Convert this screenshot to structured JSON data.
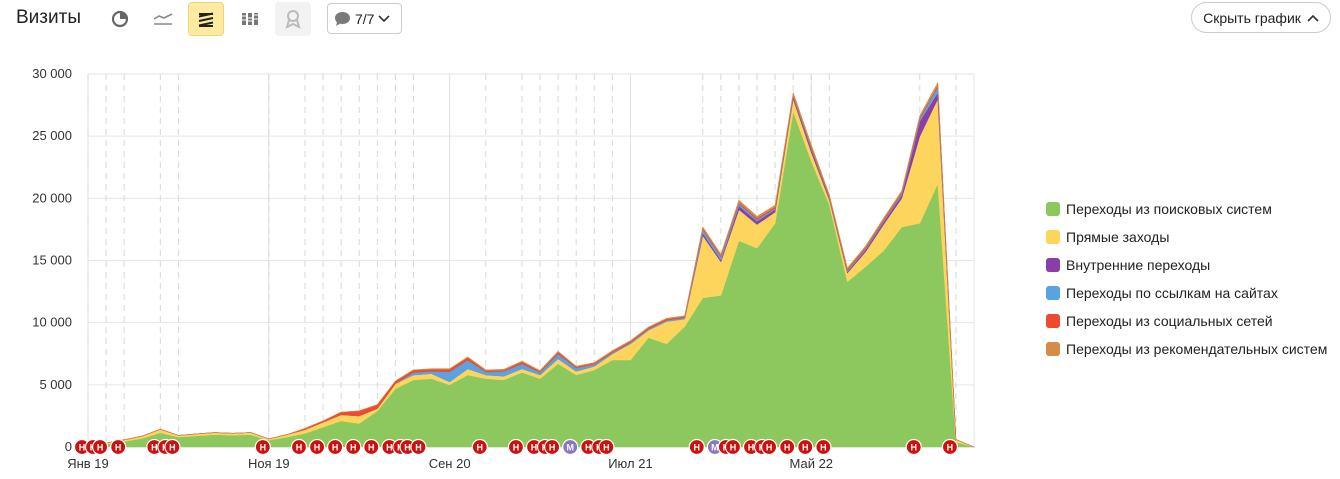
{
  "header": {
    "title": "Визиты",
    "comments_count": "7/7",
    "hide_chart_label": "Скрыть график"
  },
  "toolbar_icons": [
    "pie-chart-icon",
    "line-chart-icon",
    "stacked-area-icon",
    "bar-chart-icon",
    "map-icon",
    "comment-icon"
  ],
  "colors": {
    "search": "#8dc85f",
    "direct": "#fdd55c",
    "internal": "#8b3fa6",
    "links": "#5aa3e3",
    "social": "#ef4a2f",
    "recommend": "#d78c45",
    "marker_n": "#cc1111",
    "marker_m": "#8a75c9"
  },
  "chart_data": {
    "type": "area",
    "stacked": true,
    "x_tick_labels": [
      "Янв 19",
      "Ноя 19",
      "Сен 20",
      "Июл 21",
      "Май 22"
    ],
    "ylim": [
      0,
      30000
    ],
    "y_ticks": [
      "0",
      "5 000",
      "10 000",
      "15 000",
      "20 000",
      "25 000",
      "30 000"
    ],
    "grid": true,
    "legend_position": "right",
    "x": [
      "Янв 19",
      "Фев 19",
      "Мар 19",
      "Апр 19",
      "Май 19",
      "Июн 19",
      "Июл 19",
      "Авг 19",
      "Сен 19",
      "Окт 19",
      "Ноя 19",
      "Дек 19",
      "Янв 20",
      "Фев 20",
      "Мар 20",
      "Апр 20",
      "Май 20",
      "Июн 20",
      "Июл 20",
      "Авг 20",
      "Сен 20",
      "Окт 20",
      "Ноя 20",
      "Дек 20",
      "Янв 21",
      "Фев 21",
      "Мар 21",
      "Апр 21",
      "Май 21",
      "Июн 21",
      "Июл 21",
      "Авг 21",
      "Сен 21",
      "Окт 21",
      "Ноя 21",
      "Дек 21",
      "Янв 22",
      "Фев 22",
      "Мар 22",
      "Апр 22",
      "Май 22",
      "Июн 22",
      "Июл 22",
      "Авг 22",
      "Сен 22",
      "Окт 22",
      "Ноя 22",
      "Дек 22",
      "Янв 23",
      "Фев 23"
    ],
    "series": [
      {
        "name": "Переходы из поисковых систем",
        "color": "#8dc85f",
        "values": [
          80,
          250,
          450,
          700,
          1150,
          800,
          900,
          1000,
          950,
          1000,
          550,
          800,
          1100,
          1600,
          2100,
          1900,
          2900,
          4700,
          5400,
          5500,
          5000,
          5800,
          5500,
          5400,
          6000,
          5500,
          6700,
          5800,
          6200,
          7000,
          7000,
          8800,
          8300,
          9700,
          12000,
          12200,
          16600,
          16000,
          18000,
          27000,
          23000,
          19500,
          13300,
          14500,
          15800,
          17700,
          18000,
          21200,
          400,
          0
        ]
      },
      {
        "name": "Прямые заходы",
        "color": "#fdd55c",
        "values": [
          20,
          70,
          130,
          180,
          280,
          130,
          150,
          160,
          150,
          170,
          100,
          200,
          300,
          400,
          500,
          600,
          200,
          400,
          400,
          400,
          250,
          500,
          300,
          300,
          300,
          300,
          400,
          300,
          300,
          500,
          1300,
          600,
          1800,
          600,
          5000,
          2700,
          2500,
          1900,
          900,
          1000,
          700,
          400,
          700,
          1200,
          2100,
          2300,
          7000,
          6800,
          200,
          0
        ]
      },
      {
        "name": "Внутренние переходы",
        "color": "#8b3fa6",
        "values": [
          0,
          0,
          0,
          0,
          0,
          0,
          0,
          0,
          0,
          0,
          0,
          0,
          0,
          0,
          0,
          0,
          0,
          0,
          0,
          0,
          0,
          0,
          0,
          0,
          0,
          0,
          0,
          0,
          0,
          0,
          0,
          0,
          0,
          0,
          200,
          150,
          300,
          250,
          200,
          150,
          250,
          100,
          100,
          150,
          200,
          250,
          1200,
          500,
          0,
          0
        ]
      },
      {
        "name": "Переходы по ссылкам на сайтах",
        "color": "#5aa3e3",
        "values": [
          0,
          0,
          0,
          0,
          0,
          0,
          0,
          0,
          0,
          0,
          0,
          0,
          0,
          0,
          0,
          0,
          0,
          0,
          200,
          200,
          800,
          700,
          250,
          400,
          400,
          200,
          400,
          250,
          150,
          100,
          100,
          100,
          100,
          100,
          300,
          250,
          200,
          150,
          100,
          100,
          100,
          100,
          100,
          100,
          100,
          150,
          200,
          500,
          0,
          0
        ]
      },
      {
        "name": "Переходы из социальных сетей",
        "color": "#ef4a2f",
        "values": [
          0,
          0,
          0,
          0,
          0,
          0,
          0,
          0,
          0,
          0,
          0,
          0,
          100,
          100,
          200,
          400,
          300,
          200,
          200,
          150,
          200,
          200,
          100,
          100,
          150,
          100,
          150,
          100,
          100,
          100,
          100,
          100,
          100,
          100,
          100,
          100,
          100,
          100,
          100,
          100,
          100,
          100,
          100,
          100,
          100,
          100,
          100,
          100,
          0,
          0
        ]
      },
      {
        "name": "Переходы из рекомендательных систем",
        "color": "#d78c45",
        "values": [
          0,
          0,
          0,
          0,
          0,
          0,
          0,
          0,
          0,
          0,
          0,
          0,
          0,
          0,
          0,
          0,
          0,
          0,
          0,
          50,
          50,
          50,
          50,
          50,
          50,
          50,
          50,
          50,
          50,
          50,
          50,
          50,
          50,
          50,
          100,
          100,
          150,
          150,
          150,
          150,
          150,
          100,
          100,
          100,
          100,
          100,
          150,
          200,
          0,
          0
        ]
      }
    ],
    "markers": [
      {
        "x": "Янв 19",
        "label": "Н"
      },
      {
        "x": "Янв 19",
        "label": "Н"
      },
      {
        "x": "Фев 19",
        "label": "Н"
      },
      {
        "x": "Мар 19",
        "label": "Н"
      },
      {
        "x": "Май 19",
        "label": "Н"
      },
      {
        "x": "Май 19",
        "label": "Н"
      },
      {
        "x": "Июн 19",
        "label": "Н"
      },
      {
        "x": "Ноя 19",
        "label": "Н"
      },
      {
        "x": "Янв 20",
        "label": "Н"
      },
      {
        "x": "Фев 20",
        "label": "Н"
      },
      {
        "x": "Мар 20",
        "label": "Н"
      },
      {
        "x": "Апр 20",
        "label": "Н"
      },
      {
        "x": "Май 20",
        "label": "Н"
      },
      {
        "x": "Июн 20",
        "label": "Н"
      },
      {
        "x": "Июн 20",
        "label": "Н"
      },
      {
        "x": "Июл 20",
        "label": "Н"
      },
      {
        "x": "Июл 20",
        "label": "Н"
      },
      {
        "x": "Ноя 20",
        "label": "Н"
      },
      {
        "x": "Янв 21",
        "label": "Н"
      },
      {
        "x": "Фев 21",
        "label": "Н"
      },
      {
        "x": "Фев 21",
        "label": "Н"
      },
      {
        "x": "Мар 21",
        "label": "Н"
      },
      {
        "x": "Апр 21",
        "label": "М"
      },
      {
        "x": "Май 21",
        "label": "Н"
      },
      {
        "x": "Май 21",
        "label": "Н"
      },
      {
        "x": "Июн 21",
        "label": "Н"
      },
      {
        "x": "Ноя 21",
        "label": "Н"
      },
      {
        "x": "Дек 21",
        "label": "М"
      },
      {
        "x": "Дек 21",
        "label": "Н"
      },
      {
        "x": "Янв 22",
        "label": "Н"
      },
      {
        "x": "Фев 22",
        "label": "Н"
      },
      {
        "x": "Фев 22",
        "label": "Н"
      },
      {
        "x": "Мар 22",
        "label": "Н"
      },
      {
        "x": "Апр 22",
        "label": "Н"
      },
      {
        "x": "Май 22",
        "label": "Н"
      },
      {
        "x": "Июн 22",
        "label": "Н"
      },
      {
        "x": "Ноя 22",
        "label": "Н"
      },
      {
        "x": "Янв 23",
        "label": "Н"
      }
    ]
  }
}
